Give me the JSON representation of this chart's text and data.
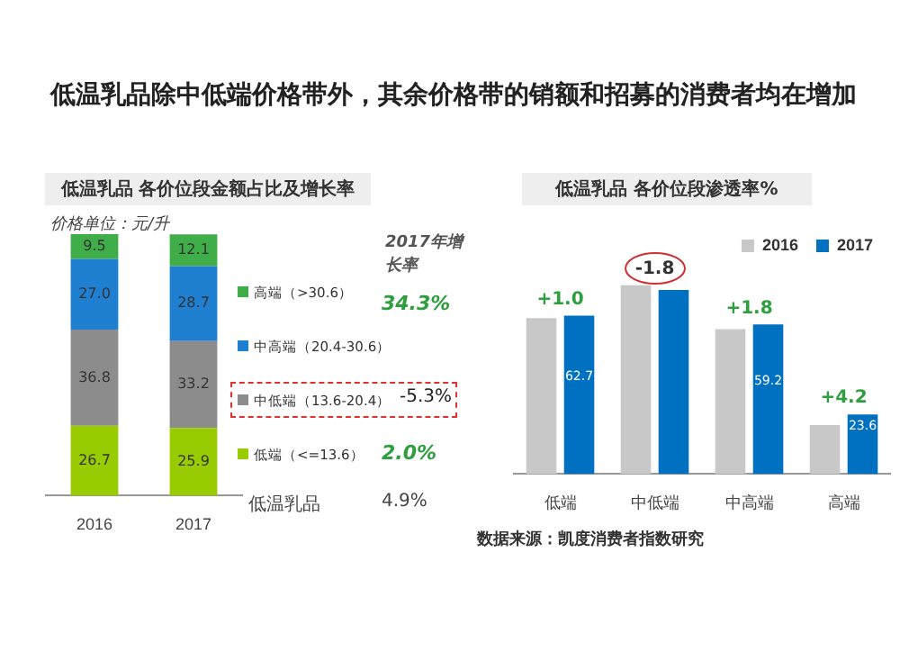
{
  "chart_data": [
    {
      "type": "bar",
      "title": "低温乳品除中低端价格带外，其余价格带的销额和招募的消费者均在增加",
      "subtitle": "低温乳品  各价位段金额占比及增长率",
      "categories": [
        "2016",
        "2017"
      ],
      "stacked": true,
      "legend": "right",
      "series": [
        {
          "name": "低端（<=13.6）",
          "color": "#99cc00",
          "values": [
            26.7,
            25.9
          ],
          "value_labels": [
            "26.7",
            "25.9"
          ]
        },
        {
          "name": "中低端（13.6-20.4）",
          "color": "#8c8c8c",
          "values": [
            36.8,
            33.2
          ],
          "value_labels": [
            "36.8",
            "33.2"
          ]
        },
        {
          "name": "中高端（20.4-30.6）",
          "color": "#1f7fd0",
          "values": [
            27.0,
            28.7
          ],
          "value_labels": [
            "27.0",
            "28.7"
          ]
        },
        {
          "name": "高端（>30.6）",
          "color": "#3fae49",
          "values": [
            9.5,
            12.1
          ],
          "value_labels": [
            "9.5",
            "12.1"
          ]
        }
      ],
      "annotations": [
        "价格单位：元/升",
        "2017年增长率",
        "34.3%",
        "-5.3%",
        "2.0%",
        "低温乳品",
        "4.9%"
      ]
    },
    {
      "type": "bar",
      "subtitle": "低温乳品  各价位段渗透率%",
      "categories": [
        "低端",
        "中低端",
        "中高端",
        "高端"
      ],
      "legend": "top right",
      "series": [
        {
          "name": "2016",
          "color": "#c8c8c8",
          "values": [
            61.7,
            74.7,
            57.4,
            19.4
          ]
        },
        {
          "name": "2017",
          "color": "#0070c0",
          "values": [
            62.7,
            72.9,
            59.2,
            23.6
          ],
          "value_labels": [
            "62.7",
            null,
            "59.2",
            "23.6"
          ]
        }
      ],
      "annotations": [
        {
          "text": "+1.0",
          "x": "低端",
          "y": 62.7
        },
        {
          "text": "-1.8",
          "x": "中低端",
          "y": 74.7
        },
        {
          "text": "+1.8",
          "x": "中高端",
          "y": 59.2
        },
        {
          "text": "+4.2",
          "x": "高端",
          "y": 23.6
        },
        "数据来源：凯度消费者指数研究"
      ]
    }
  ]
}
